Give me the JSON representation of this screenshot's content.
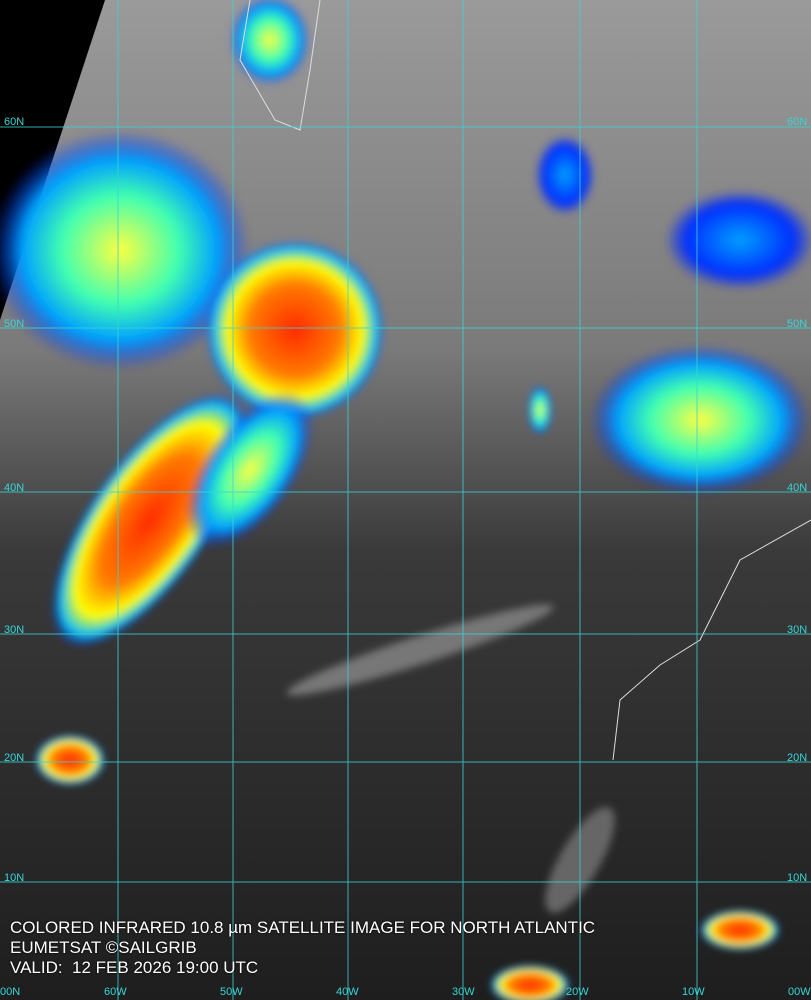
{
  "caption": {
    "title": "COLORED INFRARED 10.8 µm SATELLITE IMAGE FOR NORTH ATLANTIC",
    "credit": "EUMETSAT ©SAILGRIB",
    "valid": "VALID:  12 FEB 2026 19:00 UTC"
  },
  "grid": {
    "color": "#37d6d6",
    "lat_labels": [
      "60N",
      "50N",
      "40N",
      "30N",
      "20N",
      "10N"
    ],
    "lon_labels": [
      "00N",
      "60W",
      "50W",
      "40W",
      "30W",
      "20W",
      "10W",
      "00W"
    ]
  },
  "colors": {
    "cold_top": "#ff2a00",
    "mid": "#ffff00",
    "warm": "#0020ff",
    "ocean": "#2a2a2a"
  }
}
